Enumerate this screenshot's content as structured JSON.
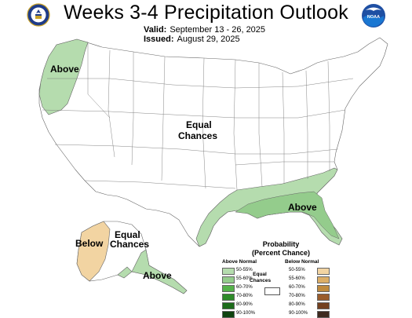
{
  "header": {
    "title": "Weeks 3-4 Precipitation Outlook",
    "valid_label": "Valid:",
    "valid_dates": "September 13 - 26, 2025",
    "issued_label": "Issued:",
    "issued_date": "August 29, 2025"
  },
  "logos": {
    "left": "doc-seal-icon",
    "right": "noaa-logo-icon",
    "right_text": "NOAA"
  },
  "regions": {
    "northwest": "Above",
    "central": "Equal Chances",
    "central_line1": "Equal",
    "central_line2": "Chances",
    "southeast": "Above",
    "alaska_west": "Below",
    "alaska_central_line1": "Equal",
    "alaska_central_line2": "Chances",
    "alaska_south": "Above"
  },
  "legend": {
    "title_line1": "Probability",
    "title_line2": "(Percent Chance)",
    "above_header": "Above Normal",
    "below_header": "Below Normal",
    "equal_line1": "Equal",
    "equal_line2": "Chances",
    "above": [
      {
        "label": "50-55%",
        "color": "#b5dcae"
      },
      {
        "label": "55-60%",
        "color": "#94cc8c"
      },
      {
        "label": "60-70%",
        "color": "#55b24a"
      },
      {
        "label": "70-80%",
        "color": "#2e8b29"
      },
      {
        "label": "80-90%",
        "color": "#1c6b1a"
      },
      {
        "label": "90-100%",
        "color": "#0f4410"
      }
    ],
    "below": [
      {
        "label": "50-55%",
        "color": "#f2d4a2"
      },
      {
        "label": "55-60%",
        "color": "#dcae67"
      },
      {
        "label": "60-70%",
        "color": "#bf8a3e"
      },
      {
        "label": "70-80%",
        "color": "#9a5c2b"
      },
      {
        "label": "80-90%",
        "color": "#73401f"
      },
      {
        "label": "90-100%",
        "color": "#3d2a1f"
      }
    ]
  },
  "colors": {
    "above_50": "#b5dcae",
    "above_55": "#94cc8c",
    "below_50": "#f2d4a2",
    "border": "#666666"
  }
}
